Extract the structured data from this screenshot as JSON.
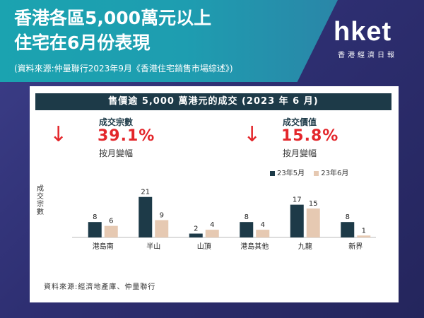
{
  "header": {
    "title_line1": "香港各區5,000萬元以上",
    "title_line2": "住宅在6月份表現",
    "source": "(資料來源:仲量聯行2023年9月《香港住宅銷售市場綜述》)"
  },
  "logo": {
    "text": "hket",
    "subtitle": "香港經濟日報"
  },
  "card": {
    "chart_title": "售價逾 5,000 萬港元的成交 (2023 年 6 月)",
    "stat_volume": {
      "label": "成交宗數",
      "value": "39.1%",
      "sub": "按月變幅",
      "arrow": "↓",
      "arrow_icon": "down-arrow-icon"
    },
    "stat_value": {
      "label": "成交價值",
      "value": "15.8%",
      "sub": "按月變幅",
      "arrow": "↓",
      "arrow_icon": "down-arrow-icon"
    },
    "footnote": "資料來源:經濟地產庫、仲量聯行"
  },
  "chart_data": {
    "type": "bar",
    "categories": [
      "港島南",
      "半山",
      "山頂",
      "港島其他",
      "九龍",
      "新界"
    ],
    "series": [
      {
        "name": "23年5月",
        "values": [
          8,
          21,
          2,
          8,
          17,
          8
        ],
        "color": "#1d3a48"
      },
      {
        "name": "23年6月",
        "values": [
          6,
          9,
          4,
          4,
          15,
          1
        ],
        "color": "#e6c9b2"
      }
    ],
    "ylabel": "成交宗數",
    "ylim": [
      0,
      22
    ],
    "legend": "top-right",
    "grid": false
  }
}
